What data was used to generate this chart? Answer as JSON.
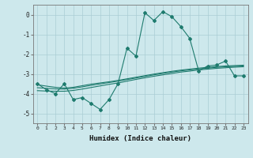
{
  "xlabel": "Humidex (Indice chaleur)",
  "x": [
    0,
    1,
    2,
    3,
    4,
    5,
    6,
    7,
    8,
    9,
    10,
    11,
    12,
    13,
    14,
    15,
    16,
    17,
    18,
    19,
    20,
    21,
    22,
    23
  ],
  "y_main": [
    -3.5,
    -3.8,
    -4.0,
    -3.5,
    -4.3,
    -4.2,
    -4.5,
    -4.8,
    -4.3,
    -3.5,
    -1.7,
    -2.1,
    0.1,
    -0.3,
    0.15,
    -0.1,
    -0.6,
    -1.2,
    -2.85,
    -2.6,
    -2.55,
    -2.35,
    -3.1,
    -3.1
  ],
  "y_trend1": [
    -3.55,
    -3.62,
    -3.68,
    -3.72,
    -3.68,
    -3.6,
    -3.52,
    -3.46,
    -3.4,
    -3.33,
    -3.25,
    -3.17,
    -3.09,
    -3.01,
    -2.94,
    -2.87,
    -2.81,
    -2.76,
    -2.71,
    -2.67,
    -2.63,
    -2.6,
    -2.58,
    -2.56
  ],
  "y_trend2": [
    -3.7,
    -3.73,
    -3.76,
    -3.77,
    -3.73,
    -3.66,
    -3.58,
    -3.51,
    -3.44,
    -3.37,
    -3.29,
    -3.21,
    -3.13,
    -3.05,
    -2.98,
    -2.91,
    -2.85,
    -2.8,
    -2.75,
    -2.71,
    -2.67,
    -2.64,
    -2.62,
    -2.6
  ],
  "y_trend3": [
    -3.85,
    -3.87,
    -3.88,
    -3.88,
    -3.84,
    -3.77,
    -3.69,
    -3.61,
    -3.53,
    -3.46,
    -3.37,
    -3.28,
    -3.2,
    -3.12,
    -3.05,
    -2.98,
    -2.91,
    -2.86,
    -2.8,
    -2.76,
    -2.72,
    -2.69,
    -2.66,
    -2.64
  ],
  "line_color": "#1e7b6e",
  "bg_color": "#cde8ec",
  "grid_color": "#aacdd4",
  "ylim": [
    -5.5,
    0.5
  ],
  "xlim": [
    -0.5,
    23.5
  ]
}
